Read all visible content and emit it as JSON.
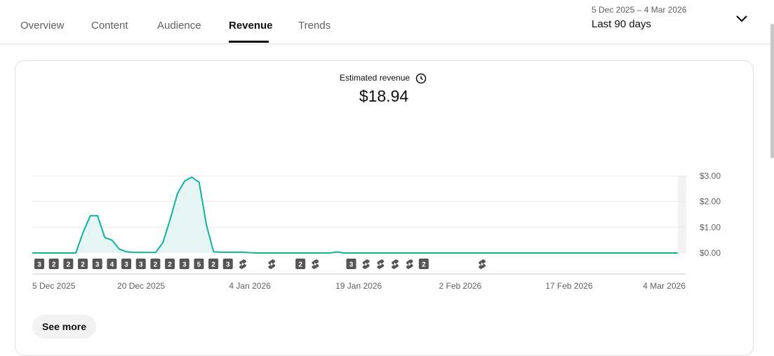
{
  "tabs": [
    {
      "label": "Overview",
      "active": false
    },
    {
      "label": "Content",
      "active": false
    },
    {
      "label": "Audience",
      "active": false
    },
    {
      "label": "Revenue",
      "active": true
    },
    {
      "label": "Trends",
      "active": false
    }
  ],
  "date_range": {
    "dates": "5 Dec 2025 – 4 Mar 2026",
    "label": "Last 90 days",
    "toggle_icon": "chevron-down-icon"
  },
  "metric": {
    "label": "Estimated revenue",
    "value": "$18.94",
    "icon": "clock-icon"
  },
  "see_more_label": "See more",
  "colors": {
    "line": "#12b19e",
    "area": "#e4f5f3",
    "marker": "#555555",
    "future_band": "#f2f2f2",
    "grid": "#e8e8e8"
  },
  "chart_data": {
    "type": "area",
    "title": "",
    "xlabel": "",
    "ylabel": "",
    "ylim": [
      0,
      3
    ],
    "y_ticks": [
      "$0.00",
      "$1.00",
      "$2.00",
      "$3.00"
    ],
    "y_tick_values": [
      0,
      1,
      2,
      3
    ],
    "x_tick_labels": [
      "5 Dec 2025",
      "20 Dec 2025",
      "4 Jan 2026",
      "19 Jan 2026",
      "2 Feb 2026",
      "17 Feb 2026",
      "4 Mar 2026"
    ],
    "x_tick_days": [
      0,
      15,
      30,
      45,
      59,
      74,
      89
    ],
    "grid": true,
    "values": [
      0,
      0,
      0,
      0,
      0,
      0,
      0,
      0.8,
      1.45,
      1.45,
      0.6,
      0.5,
      0.15,
      0.05,
      0.02,
      0.02,
      0.02,
      0.02,
      0.4,
      1.3,
      2.3,
      2.8,
      2.95,
      2.75,
      1.1,
      0.05,
      0.03,
      0.03,
      0.03,
      0.03,
      0.01,
      0,
      0,
      0,
      0,
      0,
      0,
      0,
      0,
      0,
      0,
      0,
      0.04,
      0,
      0,
      0,
      0,
      0,
      0,
      0,
      0,
      0,
      0,
      0,
      0,
      0,
      0,
      0,
      0,
      0,
      0,
      0,
      0,
      0,
      0,
      0,
      0,
      0,
      0,
      0,
      0,
      0,
      0,
      0,
      0,
      0,
      0,
      0,
      0,
      0,
      0,
      0,
      0,
      0,
      0,
      0,
      0,
      0,
      0,
      0
    ],
    "upload_markers": [
      {
        "day": 0,
        "label": "3"
      },
      {
        "day": 2,
        "label": "2"
      },
      {
        "day": 4,
        "label": "2"
      },
      {
        "day": 6,
        "label": "2"
      },
      {
        "day": 8,
        "label": "3"
      },
      {
        "day": 10,
        "label": "4"
      },
      {
        "day": 12,
        "label": "3"
      },
      {
        "day": 14,
        "label": "3"
      },
      {
        "day": 16,
        "label": "2"
      },
      {
        "day": 18,
        "label": "2"
      },
      {
        "day": 20,
        "label": "3"
      },
      {
        "day": 22,
        "label": "5"
      },
      {
        "day": 24,
        "label": "2"
      },
      {
        "day": 26,
        "label": "3"
      },
      {
        "day": 28,
        "label": "shorts"
      },
      {
        "day": 32,
        "label": "shorts"
      },
      {
        "day": 36,
        "label": "2"
      },
      {
        "day": 38,
        "label": "shorts"
      },
      {
        "day": 43,
        "label": "3"
      },
      {
        "day": 45,
        "label": "shorts"
      },
      {
        "day": 47,
        "label": "shorts"
      },
      {
        "day": 49,
        "label": "shorts"
      },
      {
        "day": 51,
        "label": "shorts"
      },
      {
        "day": 53,
        "label": "2"
      },
      {
        "day": 61,
        "label": "shorts"
      }
    ]
  }
}
